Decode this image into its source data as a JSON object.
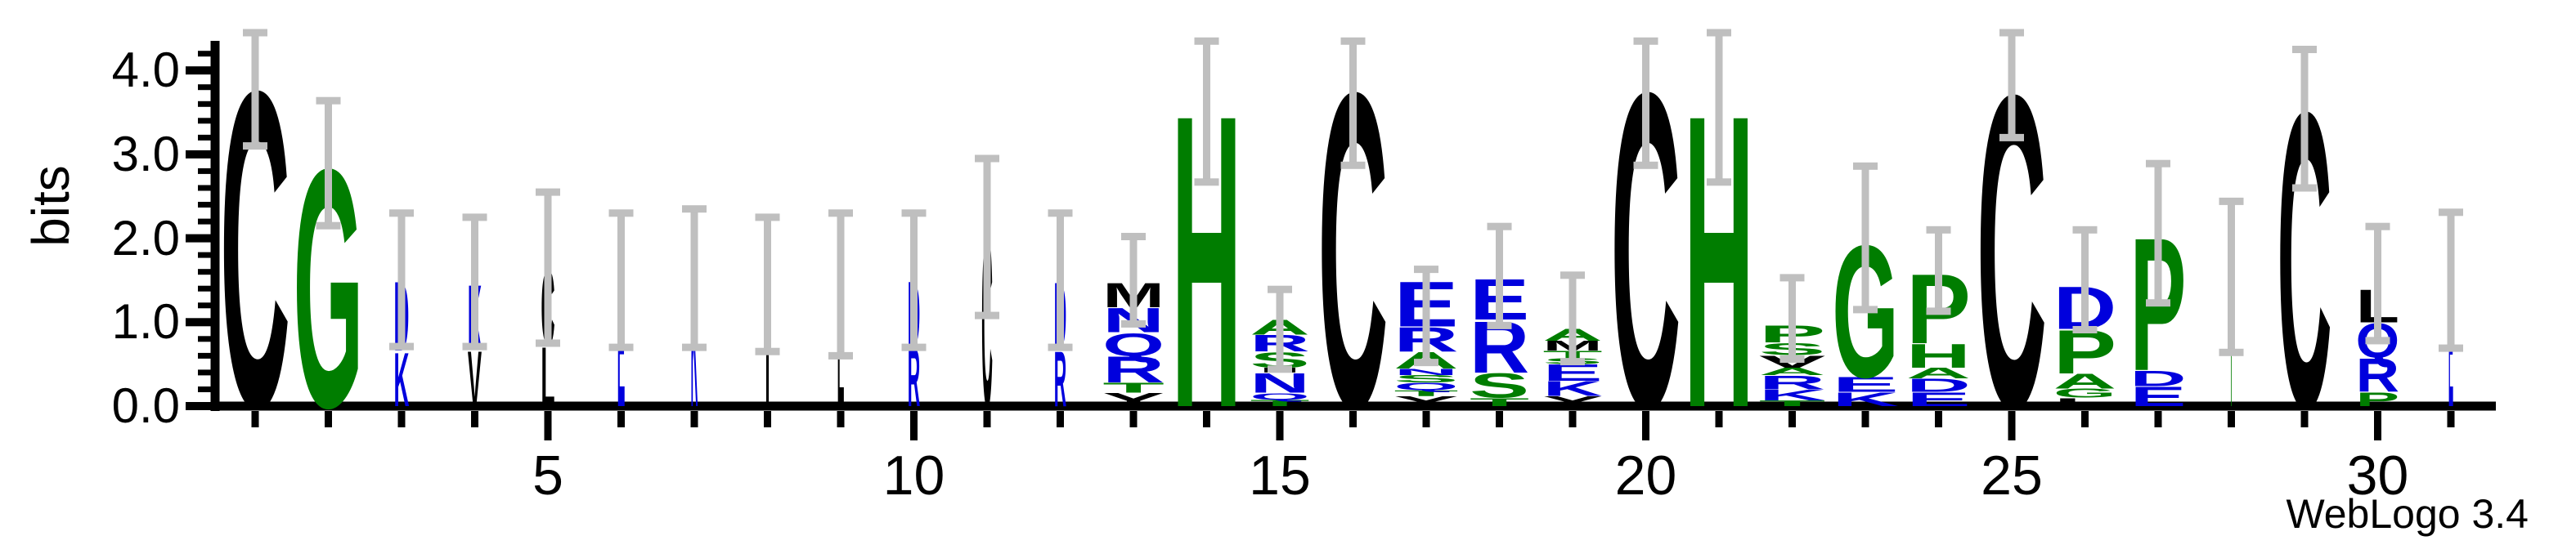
{
  "credit": "WebLogo 3.4",
  "axes": {
    "y": {
      "label": "bits",
      "tick_labels": [
        "0.0",
        "1.0",
        "2.0",
        "3.0",
        "4.0"
      ]
    },
    "x": {
      "tick_labels": [
        "5",
        "10",
        "15",
        "20",
        "25",
        "30"
      ],
      "tick_positions": [
        5,
        10,
        15,
        20,
        25,
        30
      ]
    }
  },
  "colors": {
    "hydrophobic": "#000000",
    "neutral": "#007d00",
    "hydrophilic": "#0000dd",
    "errorbar": "#bfbfbf",
    "axis": "#000000"
  },
  "chart_data": {
    "type": "sequence-logo",
    "tool": "WebLogo 3.4",
    "units": "bits",
    "ylabel": "bits",
    "ylim": [
      0,
      4.4
    ],
    "num_positions": 31,
    "color_scheme": "hydrophobicity",
    "groups": {
      "hydrophobic": "CFILMVWY",
      "neutral": "AGHPST",
      "hydrophilic": "RKDENQ"
    },
    "positions": [
      {
        "pos": 1,
        "width": 1.0,
        "err": [
          3.1,
          4.45
        ],
        "letters": [
          [
            "C",
            3.88
          ]
        ]
      },
      {
        "pos": 2,
        "width": 1.0,
        "err": [
          2.15,
          3.64
        ],
        "letters": [
          [
            "G",
            2.92
          ]
        ]
      },
      {
        "pos": 3,
        "width": 0.22,
        "err": [
          0.71,
          2.3
        ],
        "letters": [
          [
            "D",
            0.85
          ],
          [
            "K",
            0.66
          ]
        ]
      },
      {
        "pos": 4,
        "width": 0.2,
        "err": [
          0.71,
          2.25
        ],
        "letters": [
          [
            "K",
            0.79
          ],
          [
            "V",
            0.68
          ]
        ]
      },
      {
        "pos": 5,
        "width": 0.2,
        "err": [
          0.75,
          2.55
        ],
        "letters": [
          [
            "C",
            0.92
          ],
          [
            "L",
            0.73
          ]
        ]
      },
      {
        "pos": 6,
        "width": 0.11,
        "err": [
          0.7,
          2.3
        ],
        "letters": [
          [
            "E",
            1.52
          ]
        ]
      },
      {
        "pos": 7,
        "width": 0.1,
        "err": [
          0.7,
          2.35
        ],
        "letters": [
          [
            "K",
            1.55
          ]
        ]
      },
      {
        "pos": 8,
        "width": 0.07,
        "err": [
          0.65,
          2.25
        ],
        "letters": [
          [
            "I",
            1.42
          ]
        ]
      },
      {
        "pos": 9,
        "width": 0.1,
        "err": [
          0.6,
          2.3
        ],
        "letters": [
          [
            "L",
            1.45
          ]
        ]
      },
      {
        "pos": 10,
        "width": 0.18,
        "err": [
          0.7,
          2.3
        ],
        "letters": [
          [
            "D",
            0.8
          ],
          [
            "R",
            0.71
          ]
        ]
      },
      {
        "pos": 11,
        "width": 0.16,
        "err": [
          1.08,
          2.95
        ],
        "letters": [
          [
            "C",
            2.1
          ]
        ]
      },
      {
        "pos": 12,
        "width": 0.18,
        "err": [
          0.7,
          2.3
        ],
        "letters": [
          [
            "D",
            0.82
          ],
          [
            "R",
            0.68
          ]
        ]
      },
      {
        "pos": 13,
        "width": 0.88,
        "err": [
          0.98,
          2.02
        ],
        "letters": [
          [
            "M",
            0.3
          ],
          [
            "N",
            0.3
          ],
          [
            "Q",
            0.28
          ],
          [
            "R",
            0.32
          ],
          [
            "T",
            0.12
          ],
          [
            "Y",
            0.16
          ]
        ]
      },
      {
        "pos": 14,
        "width": 1.0,
        "err": [
          2.67,
          4.35
        ],
        "letters": [
          [
            "H",
            3.59
          ]
        ]
      },
      {
        "pos": 15,
        "width": 0.85,
        "err": [
          0.44,
          1.39
        ],
        "letters": [
          [
            "A",
            0.18
          ],
          [
            "R",
            0.2
          ],
          [
            "S",
            0.19
          ],
          [
            "I",
            0.06
          ],
          [
            "N",
            0.24
          ],
          [
            "Q",
            0.08
          ],
          [
            "T",
            0.08
          ]
        ]
      },
      {
        "pos": 16,
        "width": 1.0,
        "err": [
          2.87,
          4.35
        ],
        "letters": [
          [
            "C",
            3.86
          ]
        ]
      },
      {
        "pos": 17,
        "width": 0.92,
        "err": [
          0.52,
          1.63
        ],
        "letters": [
          [
            "E",
            0.55
          ],
          [
            "R",
            0.3
          ],
          [
            "A",
            0.2
          ],
          [
            "N",
            0.08
          ],
          [
            "S",
            0.09
          ],
          [
            "Q",
            0.09
          ],
          [
            "T",
            0.07
          ],
          [
            "Y",
            0.12
          ]
        ]
      },
      {
        "pos": 18,
        "width": 0.85,
        "err": [
          0.96,
          2.14
        ],
        "letters": [
          [
            "E",
            0.5
          ],
          [
            "R",
            0.63
          ],
          [
            "S",
            0.3
          ],
          [
            "T",
            0.1
          ]
        ]
      },
      {
        "pos": 19,
        "width": 0.85,
        "err": [
          0.53,
          1.56
        ],
        "letters": [
          [
            "A",
            0.15
          ],
          [
            "M",
            0.12
          ],
          [
            "T",
            0.09
          ],
          [
            "S",
            0.07
          ],
          [
            "E",
            0.2
          ],
          [
            "K",
            0.18
          ],
          [
            "Y",
            0.12
          ]
        ]
      },
      {
        "pos": 20,
        "width": 1.0,
        "err": [
          2.87,
          4.35
        ],
        "letters": [
          [
            "C",
            3.86
          ]
        ]
      },
      {
        "pos": 21,
        "width": 1.0,
        "err": [
          2.67,
          4.45
        ],
        "letters": [
          [
            "H",
            3.59
          ]
        ]
      },
      {
        "pos": 22,
        "width": 0.95,
        "err": [
          0.56,
          1.53
        ],
        "letters": [
          [
            "P",
            0.21
          ],
          [
            "S",
            0.15
          ],
          [
            "V",
            0.15
          ],
          [
            "A",
            0.09
          ],
          [
            "R",
            0.17
          ],
          [
            "K",
            0.13
          ],
          [
            "T",
            0.07
          ]
        ]
      },
      {
        "pos": 23,
        "width": 0.95,
        "err": [
          1.15,
          2.86
        ],
        "letters": [
          [
            "G",
            1.62
          ],
          [
            "E",
            0.18
          ],
          [
            "K",
            0.17
          ]
        ]
      },
      {
        "pos": 24,
        "width": 0.92,
        "err": [
          1.13,
          2.1
        ],
        "letters": [
          [
            "P",
            0.85
          ],
          [
            "H",
            0.29
          ],
          [
            "A",
            0.13
          ],
          [
            "D",
            0.16
          ],
          [
            "E",
            0.17
          ]
        ]
      },
      {
        "pos": 25,
        "width": 1.0,
        "err": [
          3.2,
          4.45
        ],
        "letters": [
          [
            "C",
            3.83
          ]
        ]
      },
      {
        "pos": 26,
        "width": 0.9,
        "err": [
          0.91,
          2.1
        ],
        "letters": [
          [
            "D",
            0.52
          ],
          [
            "P",
            0.53
          ],
          [
            "A",
            0.18
          ],
          [
            "G",
            0.11
          ],
          [
            "L",
            0.1
          ]
        ]
      },
      {
        "pos": 27,
        "width": 0.8,
        "err": [
          1.23,
          2.89
        ],
        "letters": [
          [
            "P",
            1.63
          ],
          [
            "D",
            0.19
          ],
          [
            "E",
            0.24
          ]
        ]
      },
      {
        "pos": 28,
        "width": 0.04,
        "err": [
          0.64,
          2.44
        ],
        "letters": [
          [
            "T",
            1.53
          ]
        ]
      },
      {
        "pos": 29,
        "width": 0.78,
        "err": [
          2.6,
          4.25
        ],
        "letters": [
          [
            "C",
            3.62
          ]
        ]
      },
      {
        "pos": 30,
        "width": 0.62,
        "err": [
          0.78,
          2.14
        ],
        "letters": [
          [
            "L",
            0.4
          ],
          [
            "Q",
            0.42
          ],
          [
            "R",
            0.41
          ],
          [
            "P",
            0.17
          ]
        ]
      },
      {
        "pos": 31,
        "width": 0.07,
        "err": [
          0.69,
          2.31
        ],
        "letters": [
          [
            "E",
            1.51
          ]
        ]
      }
    ]
  }
}
